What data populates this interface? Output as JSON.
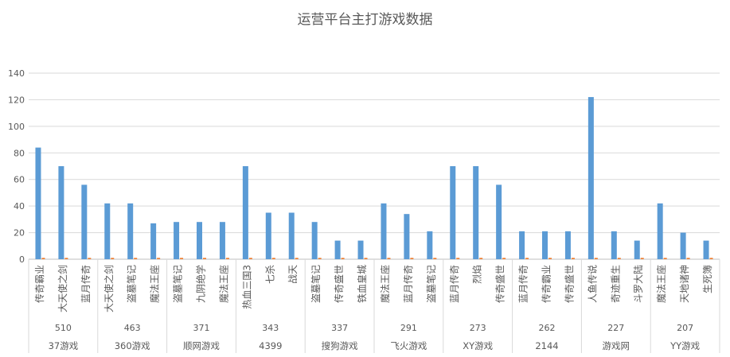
{
  "chart_data": {
    "type": "bar",
    "title": "运营平台主打游戏数据",
    "xlabel": "",
    "ylabel": "",
    "ylim": [
      0,
      140
    ],
    "yticks": [
      0,
      20,
      40,
      60,
      80,
      100,
      120,
      140
    ],
    "grid": true,
    "legend": "none",
    "colors": {
      "primary": "#5B9BD5",
      "secondary": "#ED7D31",
      "grid": "#D9D9D9",
      "text": "#595959"
    },
    "groups": [
      {
        "platform": "37游戏",
        "count": "510",
        "games": [
          "传奇霸业",
          "大天使之剑",
          "蓝月传奇"
        ],
        "values": [
          84,
          70,
          56
        ]
      },
      {
        "platform": "360游戏",
        "count": "463",
        "games": [
          "大天使之剑",
          "盗墓笔记",
          "魔法王座"
        ],
        "values": [
          42,
          42,
          27
        ]
      },
      {
        "platform": "顺网游戏",
        "count": "371",
        "games": [
          "盗墓笔记",
          "九阴绝学",
          "魔法王座"
        ],
        "values": [
          28,
          28,
          28
        ]
      },
      {
        "platform": "4399",
        "count": "343",
        "games": [
          "热血三国3",
          "七杀",
          "战天"
        ],
        "values": [
          70,
          35,
          35
        ]
      },
      {
        "platform": "搜狗游戏",
        "count": "337",
        "games": [
          "盗墓笔记",
          "传奇盛世",
          "铁血皇城"
        ],
        "values": [
          28,
          14,
          14
        ]
      },
      {
        "platform": "飞火游戏",
        "count": "291",
        "games": [
          "魔法王座",
          "蓝月传奇",
          "盗墓笔记"
        ],
        "values": [
          42,
          34,
          21
        ]
      },
      {
        "platform": "XY游戏",
        "count": "273",
        "games": [
          "蓝月传奇",
          "烈焰",
          "传奇盛世"
        ],
        "values": [
          70,
          70,
          56
        ]
      },
      {
        "platform": "2144",
        "count": "262",
        "games": [
          "蓝月传奇",
          "传奇霸业",
          "传奇盛世"
        ],
        "values": [
          21,
          21,
          21
        ]
      },
      {
        "platform": "游戏网",
        "count": "227",
        "games": [
          "人鱼传说",
          "奇迹重生",
          "斗罗大陆"
        ],
        "values": [
          122,
          21,
          14
        ]
      },
      {
        "platform": "YY游戏",
        "count": "207",
        "games": [
          "魔法王座",
          "天地诸神",
          "生死簿"
        ],
        "values": [
          42,
          20,
          14
        ]
      }
    ],
    "secondary_values": [
      [
        1,
        1,
        1
      ],
      [
        1,
        1,
        1
      ],
      [
        1,
        1,
        1
      ],
      [
        1,
        1,
        1
      ],
      [
        1,
        1,
        1
      ],
      [
        1,
        1,
        1
      ],
      [
        1,
        1,
        1
      ],
      [
        1,
        1,
        1
      ],
      [
        1,
        1,
        1
      ],
      [
        1,
        1,
        1
      ]
    ]
  }
}
